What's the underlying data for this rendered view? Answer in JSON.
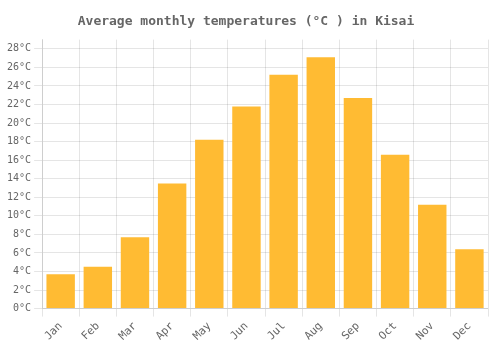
{
  "chart_data": {
    "type": "bar",
    "title": "Average monthly temperatures (°C ) in Kisai",
    "categories": [
      "Jan",
      "Feb",
      "Mar",
      "Apr",
      "May",
      "Jun",
      "Jul",
      "Aug",
      "Sep",
      "Oct",
      "Nov",
      "Dec"
    ],
    "values": [
      3.7,
      4.5,
      7.7,
      13.5,
      18.2,
      21.8,
      25.2,
      27.1,
      22.7,
      16.6,
      11.2,
      6.4
    ],
    "color": "#FFBB33",
    "ylim": [
      0,
      29
    ],
    "yticks": [
      {
        "value": 0,
        "label": "0°C"
      },
      {
        "value": 2,
        "label": "2°C"
      },
      {
        "value": 4,
        "label": "4°C"
      },
      {
        "value": 6,
        "label": "6°C"
      },
      {
        "value": 8,
        "label": "8°C"
      },
      {
        "value": 10,
        "label": "10°C"
      },
      {
        "value": 12,
        "label": "12°C"
      },
      {
        "value": 14,
        "label": "14°C"
      },
      {
        "value": 16,
        "label": "16°C"
      },
      {
        "value": 18,
        "label": "18°C"
      },
      {
        "value": 20,
        "label": "20°C"
      },
      {
        "value": 22,
        "label": "22°C"
      },
      {
        "value": 24,
        "label": "24°C"
      },
      {
        "value": 26,
        "label": "26°C"
      },
      {
        "value": 28,
        "label": "28°C"
      }
    ],
    "grid": true
  }
}
